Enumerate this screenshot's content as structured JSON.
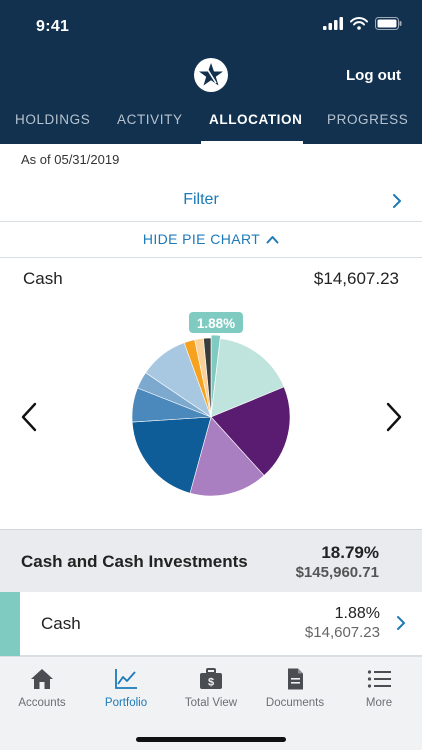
{
  "status_bar": {
    "time": "9:41"
  },
  "header": {
    "logout_label": "Log out"
  },
  "tabs": [
    {
      "label": "HOLDINGS",
      "active": false
    },
    {
      "label": "ACTIVITY",
      "active": false
    },
    {
      "label": "ALLOCATION",
      "active": true
    },
    {
      "label": "PROGRESS",
      "active": false
    }
  ],
  "as_of": "As of 05/31/2019",
  "filter": {
    "label": "Filter"
  },
  "pie_toggle": {
    "label": "HIDE PIE CHART"
  },
  "selection": {
    "label": "Cash",
    "value": "$14,607.23"
  },
  "chart_data": {
    "type": "pie",
    "highlight_label": "1.88%",
    "slices": [
      {
        "value": 1.88,
        "color": "#7fcbc1"
      },
      {
        "value": 16.9,
        "color": "#bfe3dd"
      },
      {
        "value": 19.5,
        "color": "#5a1c70"
      },
      {
        "value": 16.0,
        "color": "#a97fc2"
      },
      {
        "value": 19.7,
        "color": "#0f5d98"
      },
      {
        "value": 7.0,
        "color": "#4b89bd"
      },
      {
        "value": 3.5,
        "color": "#7ea9cf"
      },
      {
        "value": 10.0,
        "color": "#a8c7e0"
      },
      {
        "value": 2.2,
        "color": "#f6a21e"
      },
      {
        "value": 1.8,
        "color": "#f9d19a"
      },
      {
        "value": 1.52,
        "color": "#3b3b3b"
      }
    ]
  },
  "group": {
    "name": "Cash and Cash Investments",
    "percent": "18.79%",
    "amount": "$145,960.71"
  },
  "rows": [
    {
      "name": "Cash",
      "percent": "1.88%",
      "amount": "$14,607.23",
      "accent_color": "#7fcbc1"
    }
  ],
  "bottom_nav": [
    {
      "label": "Accounts",
      "icon": "house-icon",
      "active": false
    },
    {
      "label": "Portfolio",
      "icon": "line-chart-icon",
      "active": true
    },
    {
      "label": "Total View",
      "icon": "briefcase-dollar-icon",
      "active": false
    },
    {
      "label": "Documents",
      "icon": "document-icon",
      "active": false
    },
    {
      "label": "More",
      "icon": "list-menu-icon",
      "active": false
    }
  ],
  "colors": {
    "navy": "#11314f",
    "link_blue": "#1c7ab8",
    "cash_teal": "#7fcbc1"
  }
}
